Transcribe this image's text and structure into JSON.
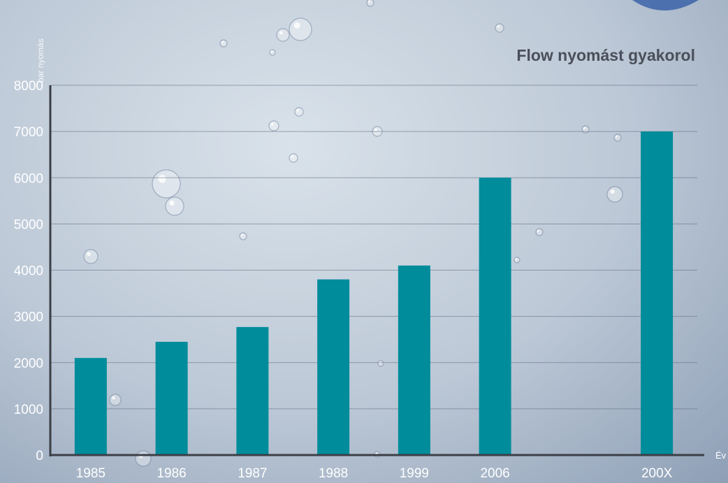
{
  "chart_data": {
    "type": "bar",
    "title": "Flow nyomást gyakorol",
    "ylabel": "bar nyomás",
    "xlabel": "Év",
    "categories": [
      "1985",
      "1986",
      "1987",
      "1988",
      "1999",
      "2006",
      "",
      "200X"
    ],
    "values": [
      2100,
      2450,
      2770,
      3800,
      4100,
      6000,
      null,
      7000
    ],
    "ylim": [
      0,
      8000
    ],
    "yticks": [
      0,
      1000,
      2000,
      3000,
      4000,
      5000,
      6000,
      7000,
      8000
    ],
    "grid": true,
    "bar_color": "#008c9b",
    "axis_color": "#3c3f46"
  }
}
